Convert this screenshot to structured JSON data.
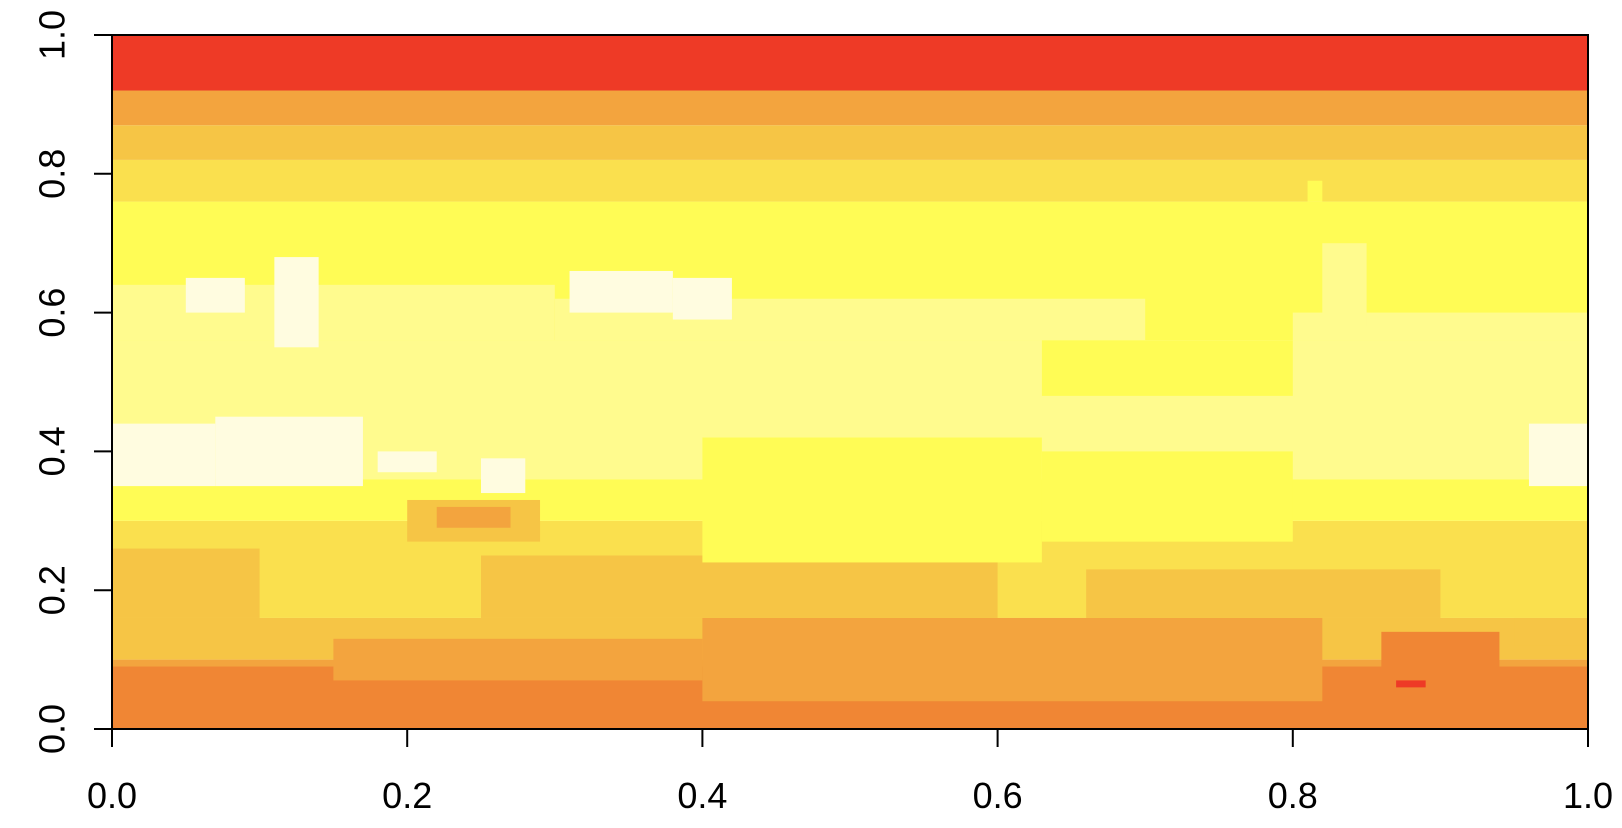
{
  "chart_data": {
    "type": "heatmap",
    "title": "",
    "xlabel": "",
    "ylabel": "",
    "xlim": [
      0.0,
      1.0
    ],
    "ylim": [
      0.0,
      1.0
    ],
    "grid": false,
    "legend": "none",
    "x_ticks": [
      "0.0",
      "0.2",
      "0.4",
      "0.6",
      "0.8",
      "1.0"
    ],
    "y_ticks": [
      "0.0",
      "0.2",
      "0.4",
      "0.6",
      "0.8",
      "1.0"
    ],
    "palette": [
      "#F08634",
      "#F3A43E",
      "#F6C545",
      "#FAE04E",
      "#FFFC55",
      "#FFFB8E",
      "#FFFCE0",
      "#EE3A26"
    ],
    "bands": [
      {
        "y0": 0.0,
        "y1": 0.04,
        "level": 0
      },
      {
        "y0": 0.04,
        "y1": 0.1,
        "level": 1
      },
      {
        "y0": 0.1,
        "y1": 0.16,
        "level": 2
      },
      {
        "y0": 0.16,
        "y1": 0.3,
        "level": 3
      },
      {
        "y0": 0.3,
        "y1": 0.36,
        "level": 4
      },
      {
        "y0": 0.36,
        "y1": 0.56,
        "level": 5
      },
      {
        "y0": 0.56,
        "y1": 0.76,
        "level": 4
      },
      {
        "y0": 0.76,
        "y1": 0.82,
        "level": 3
      },
      {
        "y0": 0.82,
        "y1": 0.87,
        "level": 2
      },
      {
        "y0": 0.87,
        "y1": 0.92,
        "level": 1
      },
      {
        "y0": 0.92,
        "y1": 1.0,
        "level": 7
      }
    ],
    "patches": [
      {
        "x0": 0.0,
        "x1": 1.0,
        "y0": 0.0,
        "y1": 0.09,
        "level": 0
      },
      {
        "x0": 0.15,
        "x1": 0.4,
        "y0": 0.07,
        "y1": 0.13,
        "level": 1
      },
      {
        "x0": 0.4,
        "x1": 0.82,
        "y0": 0.04,
        "y1": 0.16,
        "level": 1
      },
      {
        "x0": 0.86,
        "x1": 0.94,
        "y0": 0.02,
        "y1": 0.14,
        "level": 0
      },
      {
        "x0": 0.87,
        "x1": 0.89,
        "y0": 0.06,
        "y1": 0.07,
        "level": 7
      },
      {
        "x0": 0.0,
        "x1": 0.1,
        "y0": 0.16,
        "y1": 0.26,
        "level": 2
      },
      {
        "x0": 0.25,
        "x1": 0.6,
        "y0": 0.16,
        "y1": 0.25,
        "level": 2
      },
      {
        "x0": 0.66,
        "x1": 0.9,
        "y0": 0.16,
        "y1": 0.23,
        "level": 2
      },
      {
        "x0": 0.95,
        "x1": 1.0,
        "y0": 0.12,
        "y1": 0.16,
        "level": 2
      },
      {
        "x0": 0.4,
        "x1": 0.63,
        "y0": 0.24,
        "y1": 0.42,
        "level": 4
      },
      {
        "x0": 0.63,
        "x1": 0.8,
        "y0": 0.27,
        "y1": 0.4,
        "level": 4
      },
      {
        "x0": 0.2,
        "x1": 0.29,
        "y0": 0.27,
        "y1": 0.33,
        "level": 2
      },
      {
        "x0": 0.22,
        "x1": 0.27,
        "y0": 0.29,
        "y1": 0.32,
        "level": 1
      },
      {
        "x0": 0.0,
        "x1": 0.3,
        "y0": 0.56,
        "y1": 0.64,
        "level": 5
      },
      {
        "x0": 0.3,
        "x1": 0.7,
        "y0": 0.56,
        "y1": 0.62,
        "level": 5
      },
      {
        "x0": 0.8,
        "x1": 1.0,
        "y0": 0.56,
        "y1": 0.6,
        "level": 5
      },
      {
        "x0": 0.63,
        "x1": 0.8,
        "y0": 0.48,
        "y1": 0.56,
        "level": 4
      },
      {
        "x0": 0.0,
        "x1": 0.07,
        "y0": 0.35,
        "y1": 0.44,
        "level": 6
      },
      {
        "x0": 0.07,
        "x1": 0.17,
        "y0": 0.35,
        "y1": 0.45,
        "level": 6
      },
      {
        "x0": 0.11,
        "x1": 0.14,
        "y0": 0.55,
        "y1": 0.68,
        "level": 6
      },
      {
        "x0": 0.05,
        "x1": 0.09,
        "y0": 0.6,
        "y1": 0.65,
        "level": 6
      },
      {
        "x0": 0.18,
        "x1": 0.22,
        "y0": 0.37,
        "y1": 0.4,
        "level": 6
      },
      {
        "x0": 0.25,
        "x1": 0.28,
        "y0": 0.34,
        "y1": 0.39,
        "level": 6
      },
      {
        "x0": 0.31,
        "x1": 0.38,
        "y0": 0.6,
        "y1": 0.66,
        "level": 6
      },
      {
        "x0": 0.38,
        "x1": 0.42,
        "y0": 0.59,
        "y1": 0.65,
        "level": 6
      },
      {
        "x0": 0.82,
        "x1": 0.85,
        "y0": 0.58,
        "y1": 0.7,
        "level": 5
      },
      {
        "x0": 0.96,
        "x1": 1.0,
        "y0": 0.35,
        "y1": 0.44,
        "level": 6
      },
      {
        "x0": 0.81,
        "x1": 0.82,
        "y0": 0.76,
        "y1": 0.79,
        "level": 4
      }
    ]
  }
}
